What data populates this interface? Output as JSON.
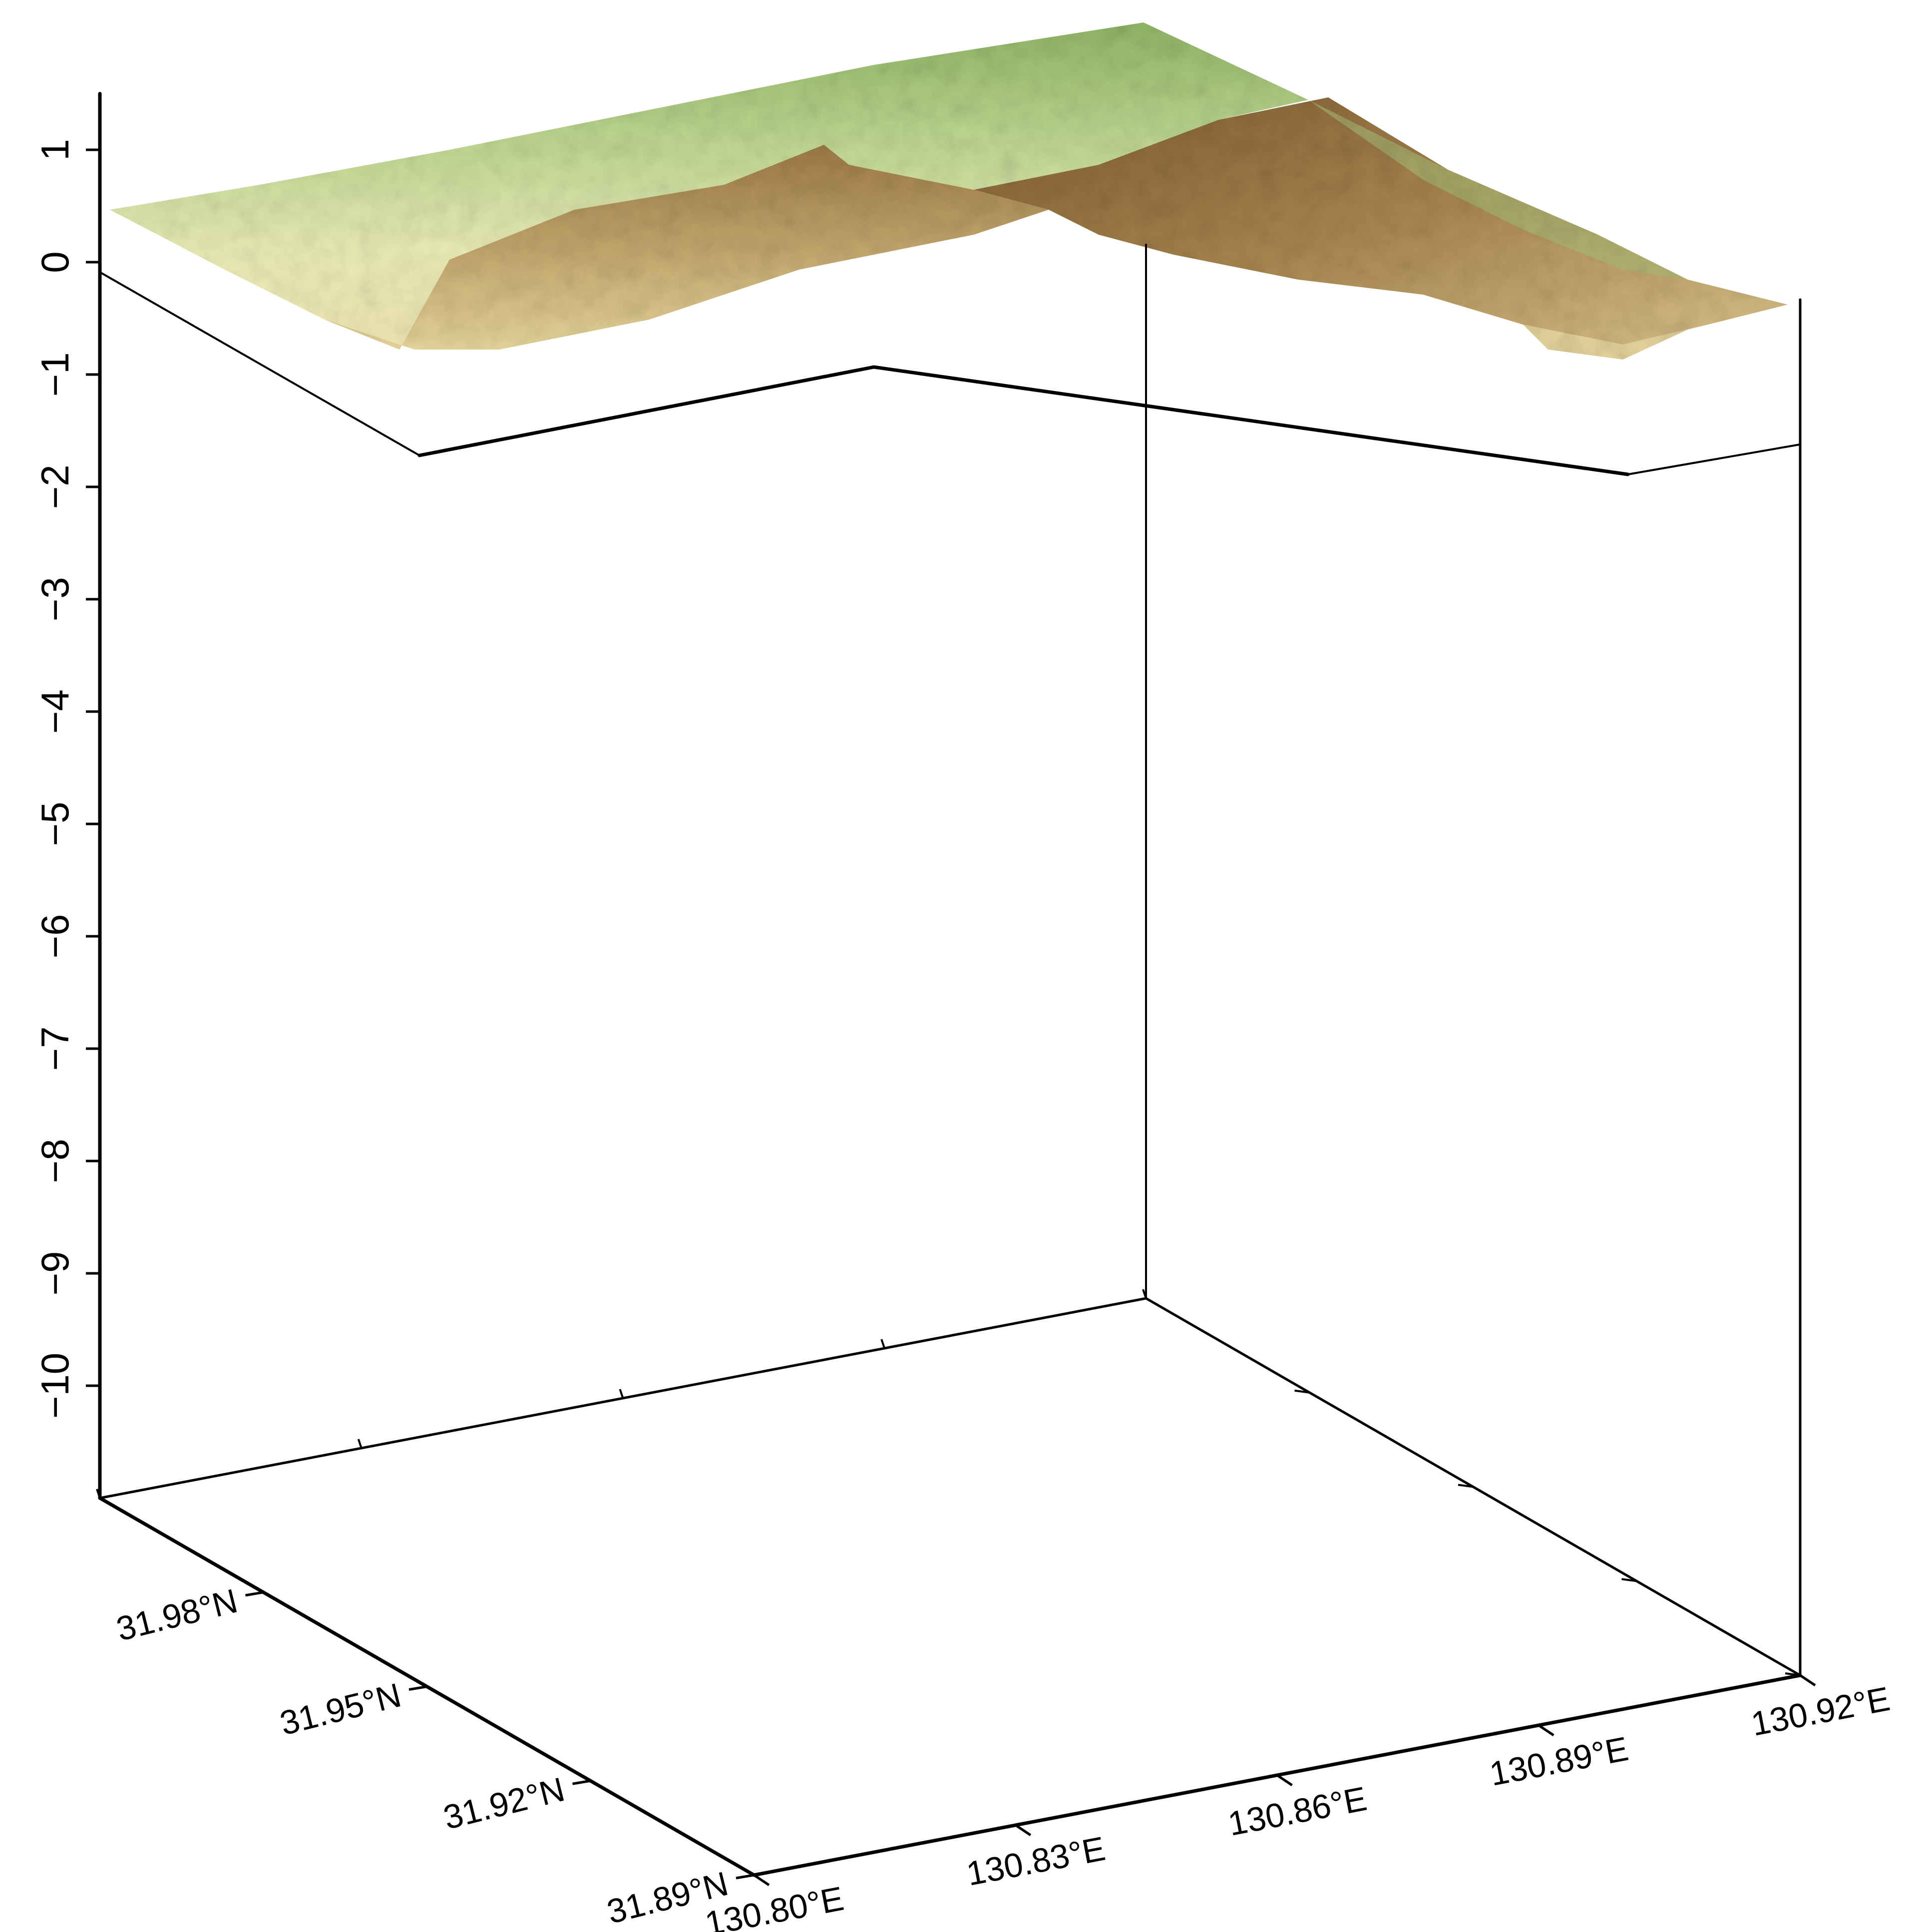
{
  "chart_data": {
    "type": "surface",
    "title": "",
    "axes": {
      "x": {
        "label": "",
        "ticks": [
          130.8,
          130.83,
          130.86,
          130.89,
          130.92
        ],
        "tick_labels": [
          "130.80°E",
          "130.83°E",
          "130.86°E",
          "130.89°E",
          "130.92°E"
        ],
        "range": [
          130.8,
          130.92
        ]
      },
      "y": {
        "label": "",
        "ticks": [
          31.89,
          31.92,
          31.95,
          31.98
        ],
        "tick_labels": [
          "31.89°N",
          "31.92°N",
          "31.95°N",
          "31.98°N"
        ],
        "range": [
          31.89,
          32.01
        ]
      },
      "z": {
        "label": "",
        "ticks": [
          -10,
          -9,
          -8,
          -7,
          -6,
          -5,
          -4,
          -3,
          -2,
          -1,
          0,
          1
        ],
        "tick_labels": [
          "−10",
          "−9",
          "−8",
          "−7",
          "−6",
          "−5",
          "−4",
          "−3",
          "−2",
          "−1",
          "0",
          "1"
        ],
        "range": [
          -11,
          1.5
        ]
      }
    },
    "surface": {
      "description_colormap": [
        "#5f8a2e",
        "#a9c87a",
        "#e8ecb0",
        "#f0e7b4",
        "#b89a5d",
        "#7d5a32"
      ],
      "shading": "hillshade"
    },
    "grid": false,
    "legend": "none"
  }
}
